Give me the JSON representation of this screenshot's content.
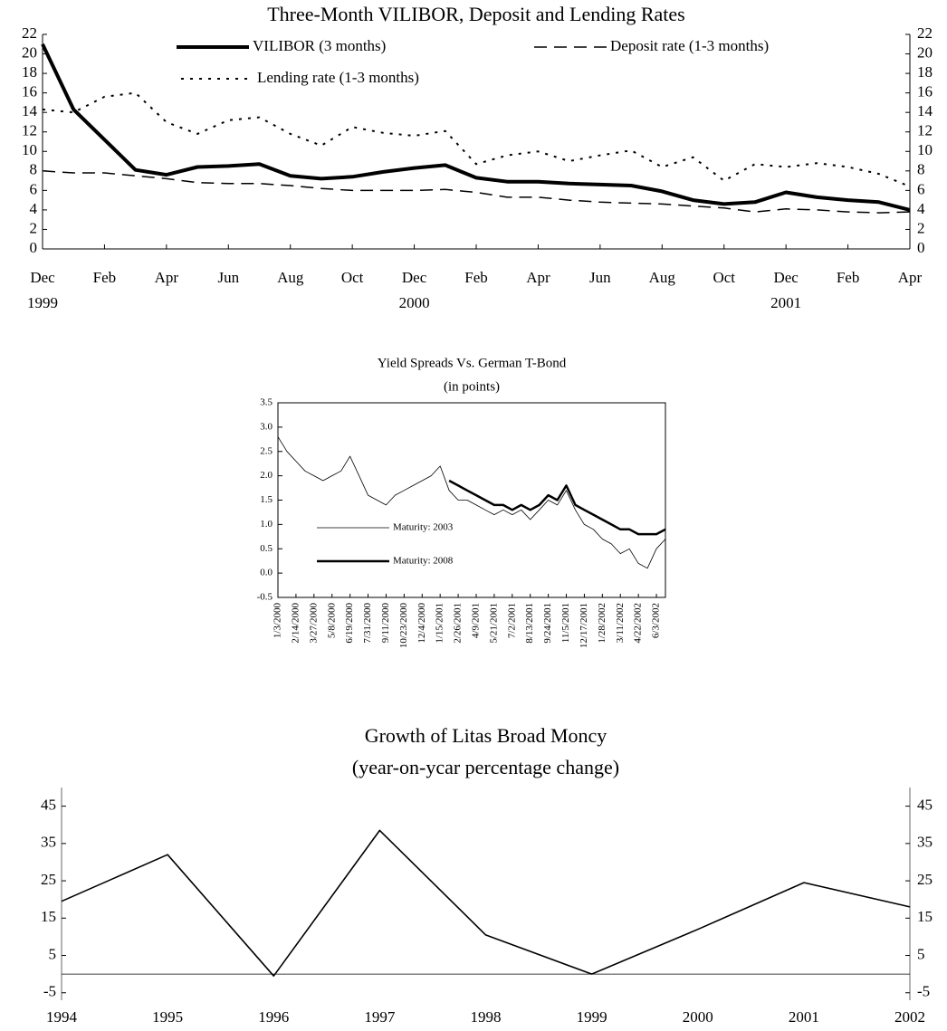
{
  "chart_data": [
    {
      "type": "line",
      "title": "Three-Month VILIBOR, Deposit and Lending Rates",
      "categories": [
        "Dec",
        null,
        "Feb",
        null,
        "Apr",
        null,
        "Jun",
        null,
        "Aug",
        null,
        "Oct",
        null,
        "Dec",
        null,
        "Feb",
        null,
        "Apr",
        null,
        "Jun",
        null,
        "Aug",
        null,
        "Oct",
        null,
        "Dec",
        null,
        "Feb",
        null,
        "Apr"
      ],
      "year_labels": [
        "1999",
        "2000",
        "2001"
      ],
      "series": [
        {
          "name": "VILIBOR (3 months)",
          "color": "#000000",
          "style": "solid",
          "width": 4,
          "values": [
            21,
            14.3,
            11.2,
            8.1,
            7.6,
            8.4,
            8.5,
            8.7,
            7.5,
            7.2,
            7.4,
            7.9,
            8.3,
            8.6,
            7.3,
            6.9,
            6.9,
            6.7,
            6.6,
            6.5,
            5.9,
            5.0,
            4.6,
            4.8,
            5.8,
            5.3,
            5.0,
            4.8,
            4.0
          ]
        },
        {
          "name": "Deposit rate (1-3 months)",
          "color": "#000000",
          "style": "dashed",
          "width": 1.5,
          "values": [
            8.0,
            7.8,
            7.8,
            7.5,
            7.2,
            6.8,
            6.7,
            6.7,
            6.5,
            6.2,
            6.0,
            6.0,
            6.0,
            6.1,
            5.8,
            5.3,
            5.3,
            5.0,
            4.8,
            4.7,
            4.6,
            4.4,
            4.2,
            3.8,
            4.1,
            4.0,
            3.8,
            3.7,
            3.8
          ]
        },
        {
          "name": "Lending rate (1-3 months)",
          "color": "#000000",
          "style": "dotted",
          "width": 2,
          "values": [
            14.3,
            14.0,
            15.6,
            16.0,
            13.0,
            11.8,
            13.2,
            13.5,
            11.8,
            10.6,
            12.5,
            11.9,
            11.6,
            12.1,
            8.7,
            9.6,
            10.0,
            9.0,
            9.6,
            10.1,
            8.4,
            9.4,
            7.0,
            8.7,
            8.4,
            8.8,
            8.4,
            7.7,
            6.4
          ]
        }
      ],
      "ylim": [
        0,
        22
      ],
      "yticks": [
        0,
        2,
        4,
        6,
        8,
        10,
        12,
        14,
        16,
        18,
        20,
        22
      ],
      "y2lim": [
        0,
        22
      ],
      "y2ticks": [
        0,
        2,
        4,
        6,
        8,
        10,
        12,
        14,
        16,
        18,
        20,
        22
      ]
    },
    {
      "type": "line",
      "title": "Yield Spreads Vs. German T-Bond",
      "subtitle": "(in points)",
      "categories": [
        "1/3/2000",
        null,
        "2/14/2000",
        null,
        "3/27/2000",
        null,
        "5/8/2000",
        null,
        "6/19/2000",
        null,
        "7/31/2000",
        null,
        "9/11/2000",
        null,
        "10/23/2000",
        null,
        "12/4/2000",
        null,
        "1/15/2001",
        null,
        "2/26/2001",
        null,
        "4/9/2001",
        null,
        "5/21/2001",
        null,
        "7/2/2001",
        null,
        "8/13/2001",
        null,
        "9/24/2001",
        null,
        "11/5/2001",
        null,
        "12/17/2001",
        null,
        "1/28/2002",
        null,
        "3/11/2002",
        null,
        "4/22/2002",
        null,
        "6/3/2002",
        null
      ],
      "series": [
        {
          "name": "Maturity: 2003",
          "color": "#000000",
          "style": "solid",
          "width": 0.8,
          "values": [
            2.8,
            2.5,
            2.3,
            2.1,
            2.0,
            1.9,
            2.0,
            2.1,
            2.4,
            2.0,
            1.6,
            1.5,
            1.4,
            1.6,
            1.7,
            1.8,
            1.9,
            2.0,
            2.2,
            1.7,
            1.5,
            1.5,
            1.4,
            1.3,
            1.2,
            1.3,
            1.2,
            1.3,
            1.1,
            1.3,
            1.5,
            1.4,
            1.7,
            1.3,
            1.0,
            0.9,
            0.7,
            0.6,
            0.4,
            0.5,
            0.2,
            0.1,
            0.5,
            0.7
          ]
        },
        {
          "name": "Maturity: 2008",
          "color": "#000000",
          "style": "solid",
          "width": 2.5,
          "values": [
            null,
            null,
            null,
            null,
            null,
            null,
            null,
            null,
            null,
            null,
            null,
            null,
            null,
            null,
            null,
            null,
            null,
            null,
            null,
            1.9,
            1.8,
            1.7,
            1.6,
            1.5,
            1.4,
            1.4,
            1.3,
            1.4,
            1.3,
            1.4,
            1.6,
            1.5,
            1.8,
            1.4,
            1.3,
            1.2,
            1.1,
            1.0,
            0.9,
            0.9,
            0.8,
            0.8,
            0.8,
            0.9
          ]
        }
      ],
      "ylim": [
        -0.5,
        3.5
      ],
      "yticks": [
        -0.5,
        {
          "value": 0,
          "label": "0.0"
        },
        0.5,
        {
          "value": 1,
          "label": "1.0"
        },
        1.5,
        {
          "value": 2,
          "label": "2.0"
        },
        2.5,
        {
          "value": 3,
          "label": "3.0"
        },
        3.5
      ]
    },
    {
      "type": "line",
      "title": "Growth of Litas Broad Moncy",
      "subtitle": "(year-on-ycar percentage change)",
      "categories": [
        "1994",
        "1995",
        "1996",
        "1997",
        "1998",
        "1999",
        "2000",
        "2001",
        "2002"
      ],
      "values": [
        19.5,
        32,
        -0.5,
        38.5,
        10.5,
        0,
        12,
        24.5,
        18
      ],
      "color": "#000000",
      "zero_line": true,
      "ylim": [
        -7,
        50
      ],
      "yticks": [
        45,
        35,
        25,
        15,
        5,
        -5
      ],
      "y2lim": [
        -7,
        50
      ],
      "y2ticks": [
        45,
        35,
        25,
        15,
        5,
        -5
      ]
    }
  ]
}
